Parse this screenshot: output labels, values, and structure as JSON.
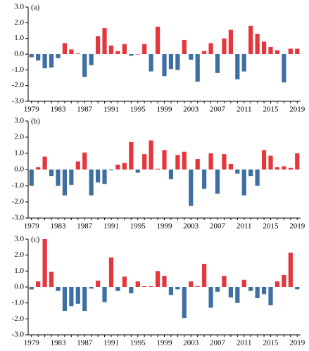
{
  "chart_data": [
    {
      "type": "bar",
      "label": "(a)",
      "categories": [
        "1979",
        null,
        null,
        null,
        "1983",
        null,
        null,
        null,
        "1987",
        null,
        null,
        null,
        "1991",
        null,
        null,
        null,
        "1995",
        null,
        null,
        null,
        "1999",
        null,
        null,
        null,
        "2003",
        null,
        null,
        null,
        "2007",
        null,
        null,
        null,
        "2011",
        null,
        null,
        null,
        "2015",
        null,
        null,
        null,
        "2019"
      ],
      "values": [
        -0.2,
        -0.4,
        -0.9,
        -0.85,
        -0.25,
        0.7,
        0.3,
        0.05,
        -1.45,
        -0.7,
        1.15,
        1.65,
        0.55,
        0.2,
        0.65,
        -0.1,
        0.0,
        0.65,
        -1.1,
        1.75,
        -1.4,
        -0.95,
        -1.0,
        0.9,
        -0.35,
        -1.75,
        0.2,
        0.7,
        -1.2,
        1.0,
        1.55,
        -1.6,
        -1.1,
        1.8,
        1.3,
        0.8,
        0.45,
        0.25,
        -1.8,
        0.35,
        0.35
      ],
      "pos_color": "#e4363b",
      "neg_color": "#3e6fa3",
      "ylim": [
        -3,
        3
      ],
      "yticks": [
        {
          "value": -3,
          "label": "-3.0"
        },
        {
          "value": -2,
          "label": "-2.0"
        },
        {
          "value": -1,
          "label": "-1.0"
        },
        {
          "value": 0,
          "label": "0.0"
        },
        {
          "value": 1,
          "label": "1.0"
        },
        {
          "value": 2,
          "label": "2.0"
        },
        {
          "value": 3,
          "label": "3.0"
        }
      ]
    },
    {
      "type": "bar",
      "label": "(b)",
      "categories": [
        "1979",
        null,
        null,
        null,
        "1983",
        null,
        null,
        null,
        "1987",
        null,
        null,
        null,
        "1991",
        null,
        null,
        null,
        "1995",
        null,
        null,
        null,
        "1999",
        null,
        null,
        null,
        "2003",
        null,
        null,
        null,
        "2007",
        null,
        null,
        null,
        "2011",
        null,
        null,
        null,
        "2015",
        null,
        null,
        null,
        "2019"
      ],
      "values": [
        -1.0,
        0.15,
        0.8,
        -0.4,
        -1.0,
        -1.6,
        -0.95,
        0.5,
        1.05,
        -1.6,
        -0.8,
        -0.9,
        -0.05,
        0.3,
        0.4,
        1.7,
        -0.2,
        0.95,
        1.8,
        0.05,
        1.2,
        -0.6,
        0.9,
        1.1,
        -2.25,
        0.65,
        -1.2,
        1.0,
        -1.5,
        0.95,
        0.35,
        -0.25,
        -1.6,
        -0.4,
        -1.0,
        1.2,
        0.85,
        0.15,
        0.2,
        0.1,
        1.0
      ],
      "pos_color": "#e4363b",
      "neg_color": "#3e6fa3",
      "ylim": [
        -3,
        3
      ],
      "yticks": [
        {
          "value": -3,
          "label": "-3.0"
        },
        {
          "value": -2,
          "label": "-2.0"
        },
        {
          "value": -1,
          "label": "-1.0"
        },
        {
          "value": 0,
          "label": "0.0"
        },
        {
          "value": 1,
          "label": "1.0"
        },
        {
          "value": 2,
          "label": "2.0"
        },
        {
          "value": 3,
          "label": "3.0"
        }
      ]
    },
    {
      "type": "bar",
      "label": "(c)",
      "categories": [
        "1979",
        null,
        null,
        null,
        "1983",
        null,
        null,
        null,
        "1987",
        null,
        null,
        null,
        "1991",
        null,
        null,
        null,
        "1995",
        null,
        null,
        null,
        "1999",
        null,
        null,
        null,
        "2003",
        null,
        null,
        null,
        "2007",
        null,
        null,
        null,
        "2011",
        null,
        null,
        null,
        "2015",
        null,
        null,
        null,
        "2019"
      ],
      "values": [
        -0.15,
        0.35,
        3.0,
        0.95,
        -0.25,
        -1.5,
        -1.2,
        -1.05,
        -1.5,
        -0.1,
        0.4,
        -0.95,
        1.85,
        -0.25,
        0.65,
        -0.4,
        0.35,
        0.05,
        0.05,
        1.0,
        0.7,
        -0.5,
        -0.15,
        -1.95,
        0.35,
        0.05,
        1.45,
        -1.3,
        -0.3,
        0.7,
        -0.65,
        -1.0,
        0.45,
        -0.25,
        -0.7,
        -0.45,
        -1.15,
        0.35,
        0.75,
        2.15,
        -0.15
      ],
      "pos_color": "#e4363b",
      "neg_color": "#3e6fa3",
      "ylim": [
        -3,
        3
      ],
      "yticks": [
        {
          "value": -3,
          "label": "-3.0"
        },
        {
          "value": -2,
          "label": "-2.0"
        },
        {
          "value": -1,
          "label": "-1.0"
        },
        {
          "value": 0,
          "label": "0.0"
        },
        {
          "value": 1,
          "label": "1.0"
        },
        {
          "value": 2,
          "label": "2.0"
        },
        {
          "value": 3,
          "label": "3.0"
        }
      ]
    }
  ]
}
